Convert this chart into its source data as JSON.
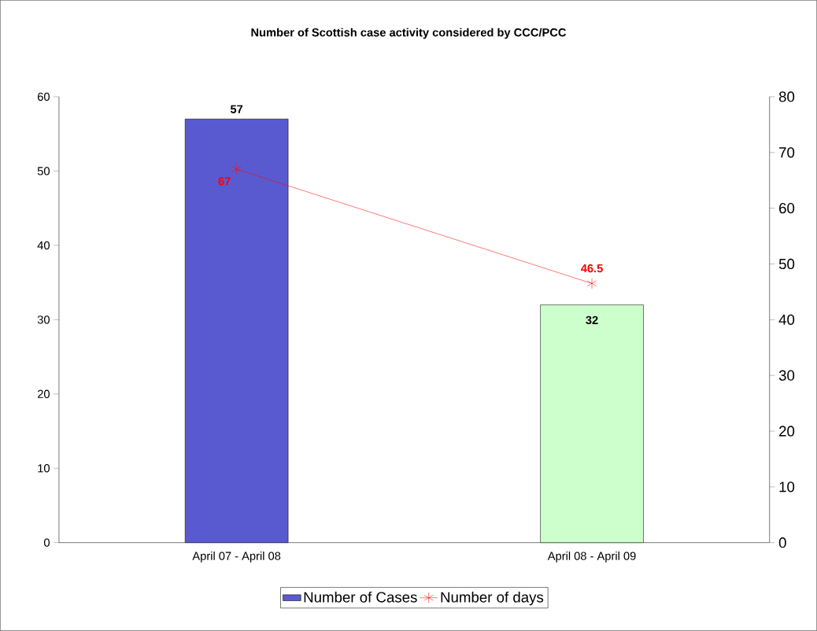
{
  "chart_data": {
    "type": "bar",
    "title": "Number of  Scottish case activity considered by CCC/PCC",
    "categories": [
      "April 07 - April 08",
      "April 08 - April 09"
    ],
    "series": [
      {
        "name": "Number of Cases",
        "colors": [
          "#5a5ad0",
          "#ccffcc"
        ],
        "values": [
          57,
          32
        ]
      },
      {
        "name": "Number of days",
        "type": "line",
        "axis": "y2",
        "color": "#ff0000",
        "marker": "cross",
        "values": [
          67,
          46.5
        ]
      }
    ],
    "ylim": [
      0,
      60
    ],
    "yticks": [
      0,
      10,
      20,
      30,
      40,
      50,
      60
    ],
    "y2lim": [
      0,
      80
    ],
    "y2ticks": [
      0,
      10,
      20,
      30,
      40,
      50,
      60,
      70,
      80
    ],
    "data_labels": true,
    "legend": "bottom",
    "grid": false
  }
}
